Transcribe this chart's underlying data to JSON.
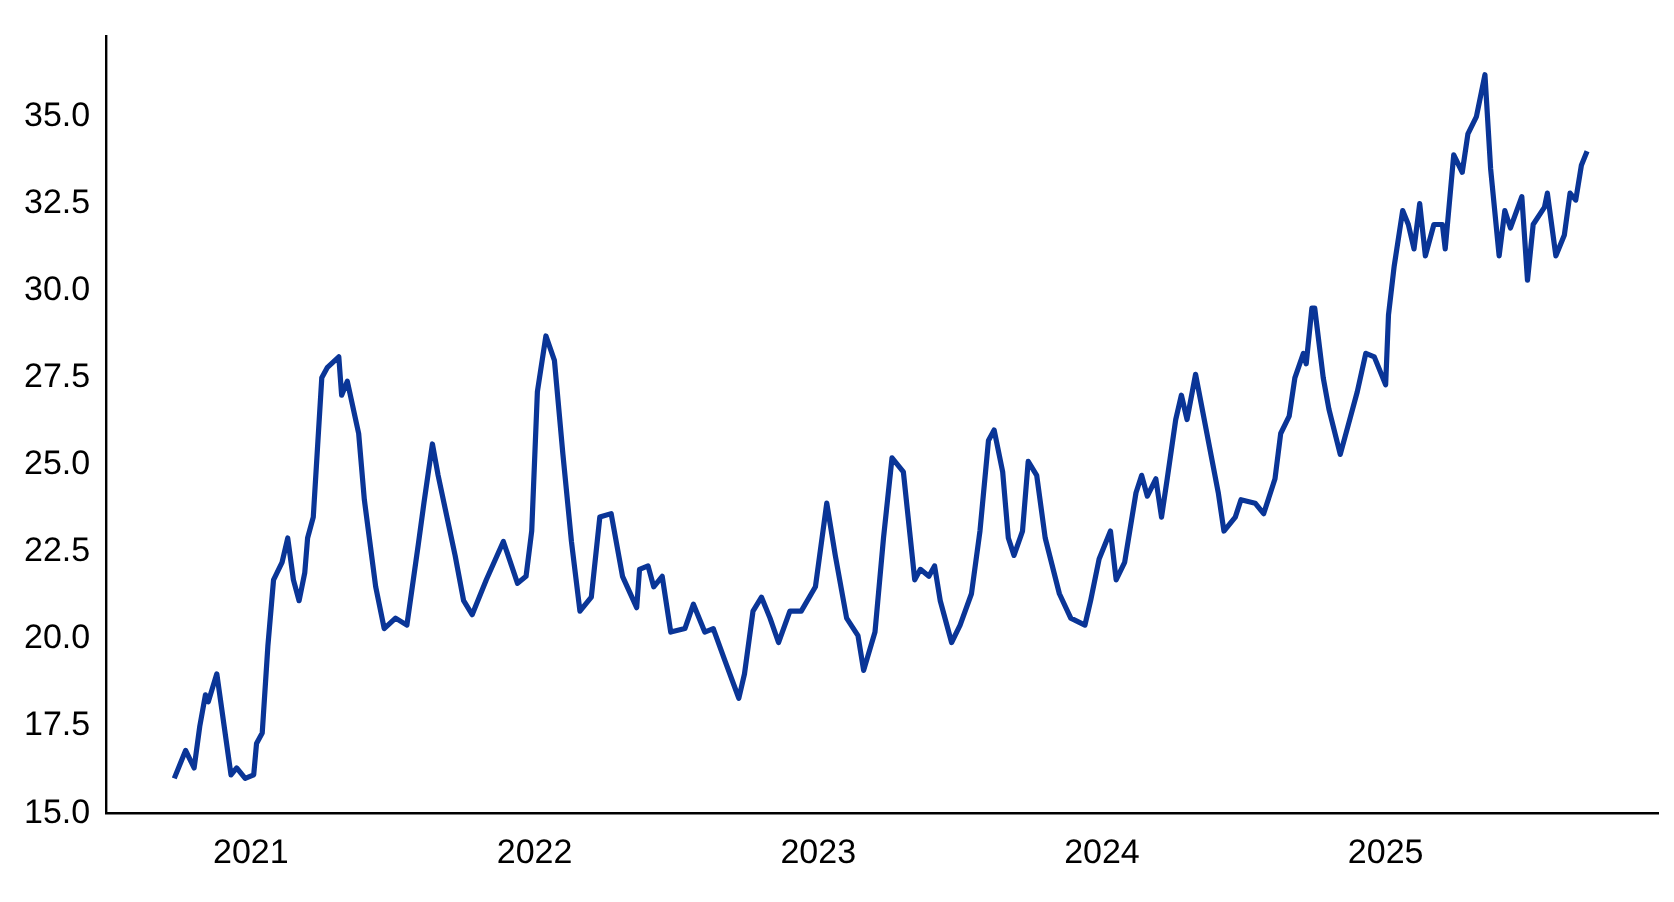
{
  "chart_data": {
    "type": "line",
    "color": "#0a3597",
    "grid": false,
    "legend": false,
    "marker": "none",
    "line_style": "solid",
    "x": [
      2020.73,
      2020.77,
      2020.8,
      2020.82,
      2020.84,
      2020.85,
      2020.88,
      2020.93,
      2020.95,
      2020.98,
      2021.01,
      2021.02,
      2021.04,
      2021.06,
      2021.08,
      2021.11,
      2021.13,
      2021.15,
      2021.17,
      2021.19,
      2021.2,
      2021.22,
      2021.25,
      2021.27,
      2021.31,
      2021.32,
      2021.34,
      2021.38,
      2021.4,
      2021.44,
      2021.47,
      2021.51,
      2021.55,
      2021.59,
      2021.61,
      2021.64,
      2021.66,
      2021.72,
      2021.75,
      2021.78,
      2021.83,
      2021.89,
      2021.94,
      2021.97,
      2021.99,
      2022.01,
      2022.04,
      2022.07,
      2022.1,
      2022.13,
      2022.16,
      2022.2,
      2022.23,
      2022.27,
      2022.31,
      2022.36,
      2022.37,
      2022.4,
      2022.42,
      2022.45,
      2022.48,
      2022.53,
      2022.56,
      2022.6,
      2022.63,
      2022.67,
      2022.72,
      2022.74,
      2022.77,
      2022.8,
      2022.83,
      2022.86,
      2022.9,
      2022.94,
      2022.99,
      2023.03,
      2023.06,
      2023.1,
      2023.14,
      2023.16,
      2023.2,
      2023.23,
      2023.26,
      2023.28,
      2023.3,
      2023.34,
      2023.36,
      2023.39,
      2023.41,
      2023.43,
      2023.47,
      2023.5,
      2023.54,
      2023.57,
      2023.6,
      2023.62,
      2023.65,
      2023.67,
      2023.69,
      2023.72,
      2023.74,
      2023.77,
      2023.8,
      2023.85,
      2023.89,
      2023.94,
      2023.96,
      2023.99,
      2024.03,
      2024.05,
      2024.08,
      2024.12,
      2024.14,
      2024.16,
      2024.19,
      2024.21,
      2024.23,
      2024.26,
      2024.28,
      2024.3,
      2024.33,
      2024.37,
      2024.41,
      2024.43,
      2024.47,
      2024.49,
      2024.54,
      2024.57,
      2024.61,
      2024.63,
      2024.66,
      2024.68,
      2024.71,
      2024.72,
      2024.74,
      2024.75,
      2024.78,
      2024.8,
      2024.84,
      2024.87,
      2024.9,
      2024.93,
      2024.96,
      2025.0,
      2025.01,
      2025.03,
      2025.06,
      2025.08,
      2025.1,
      2025.12,
      2025.14,
      2025.17,
      2025.2,
      2025.21,
      2025.24,
      2025.27,
      2025.29,
      2025.32,
      2025.35,
      2025.37,
      2025.4,
      2025.42,
      2025.44,
      2025.48,
      2025.5,
      2025.52,
      2025.56,
      2025.57,
      2025.6,
      2025.63,
      2025.65,
      2025.67,
      2025.69,
      2025.71
    ],
    "values": [
      16.0,
      16.8,
      16.3,
      17.5,
      18.4,
      18.2,
      19.0,
      16.1,
      16.3,
      16.0,
      16.1,
      17.0,
      17.3,
      19.8,
      21.7,
      22.2,
      22.9,
      21.7,
      21.1,
      21.9,
      22.9,
      23.5,
      27.5,
      27.8,
      28.1,
      27.0,
      27.4,
      25.9,
      24.0,
      21.5,
      20.3,
      20.6,
      20.4,
      22.7,
      23.9,
      25.6,
      24.7,
      22.4,
      21.1,
      20.7,
      21.7,
      22.8,
      21.6,
      21.8,
      23.1,
      27.1,
      28.7,
      28.0,
      25.3,
      22.8,
      20.8,
      21.2,
      23.5,
      23.6,
      21.8,
      20.9,
      22.0,
      22.1,
      21.5,
      21.8,
      20.2,
      20.3,
      21.0,
      20.2,
      20.3,
      19.4,
      18.3,
      19.0,
      20.8,
      21.2,
      20.6,
      19.9,
      20.8,
      20.8,
      21.5,
      23.9,
      22.4,
      20.6,
      20.1,
      19.1,
      20.2,
      22.9,
      25.2,
      25.0,
      24.8,
      21.7,
      22.0,
      21.8,
      22.1,
      21.1,
      19.9,
      20.4,
      21.3,
      23.1,
      25.7,
      26.0,
      24.8,
      22.9,
      22.4,
      23.1,
      25.1,
      24.7,
      22.9,
      21.3,
      20.6,
      20.4,
      21.1,
      22.3,
      23.1,
      21.7,
      22.2,
      24.2,
      24.7,
      24.1,
      24.6,
      23.5,
      24.6,
      26.3,
      27.0,
      26.3,
      27.6,
      25.9,
      24.2,
      23.1,
      23.5,
      24.0,
      23.9,
      23.6,
      24.6,
      25.9,
      26.4,
      27.5,
      28.2,
      27.9,
      29.5,
      29.5,
      27.5,
      26.6,
      25.3,
      26.2,
      27.1,
      28.2,
      28.1,
      27.3,
      29.3,
      30.7,
      32.3,
      31.9,
      31.2,
      32.5,
      31.0,
      31.9,
      31.9,
      31.2,
      33.9,
      33.4,
      34.5,
      35.0,
      36.2,
      33.5,
      31.0,
      32.3,
      31.8,
      32.7,
      30.3,
      31.9,
      32.4,
      32.8,
      31.0,
      31.6,
      32.8,
      32.6,
      33.6,
      34.0
    ],
    "xlim": [
      2020.49,
      2025.96
    ],
    "xticks": [
      2021,
      2022,
      2023,
      2024,
      2025
    ],
    "ylim": [
      15,
      37.3
    ],
    "yticks": [
      {
        "value": 15,
        "label": "15.0"
      },
      17.5,
      {
        "value": 20,
        "label": "20.0"
      },
      22.5,
      {
        "value": 25,
        "label": "25.0"
      },
      27.5,
      {
        "value": 30,
        "label": "30.0"
      },
      32.5,
      {
        "value": 35,
        "label": "35.0"
      }
    ]
  }
}
